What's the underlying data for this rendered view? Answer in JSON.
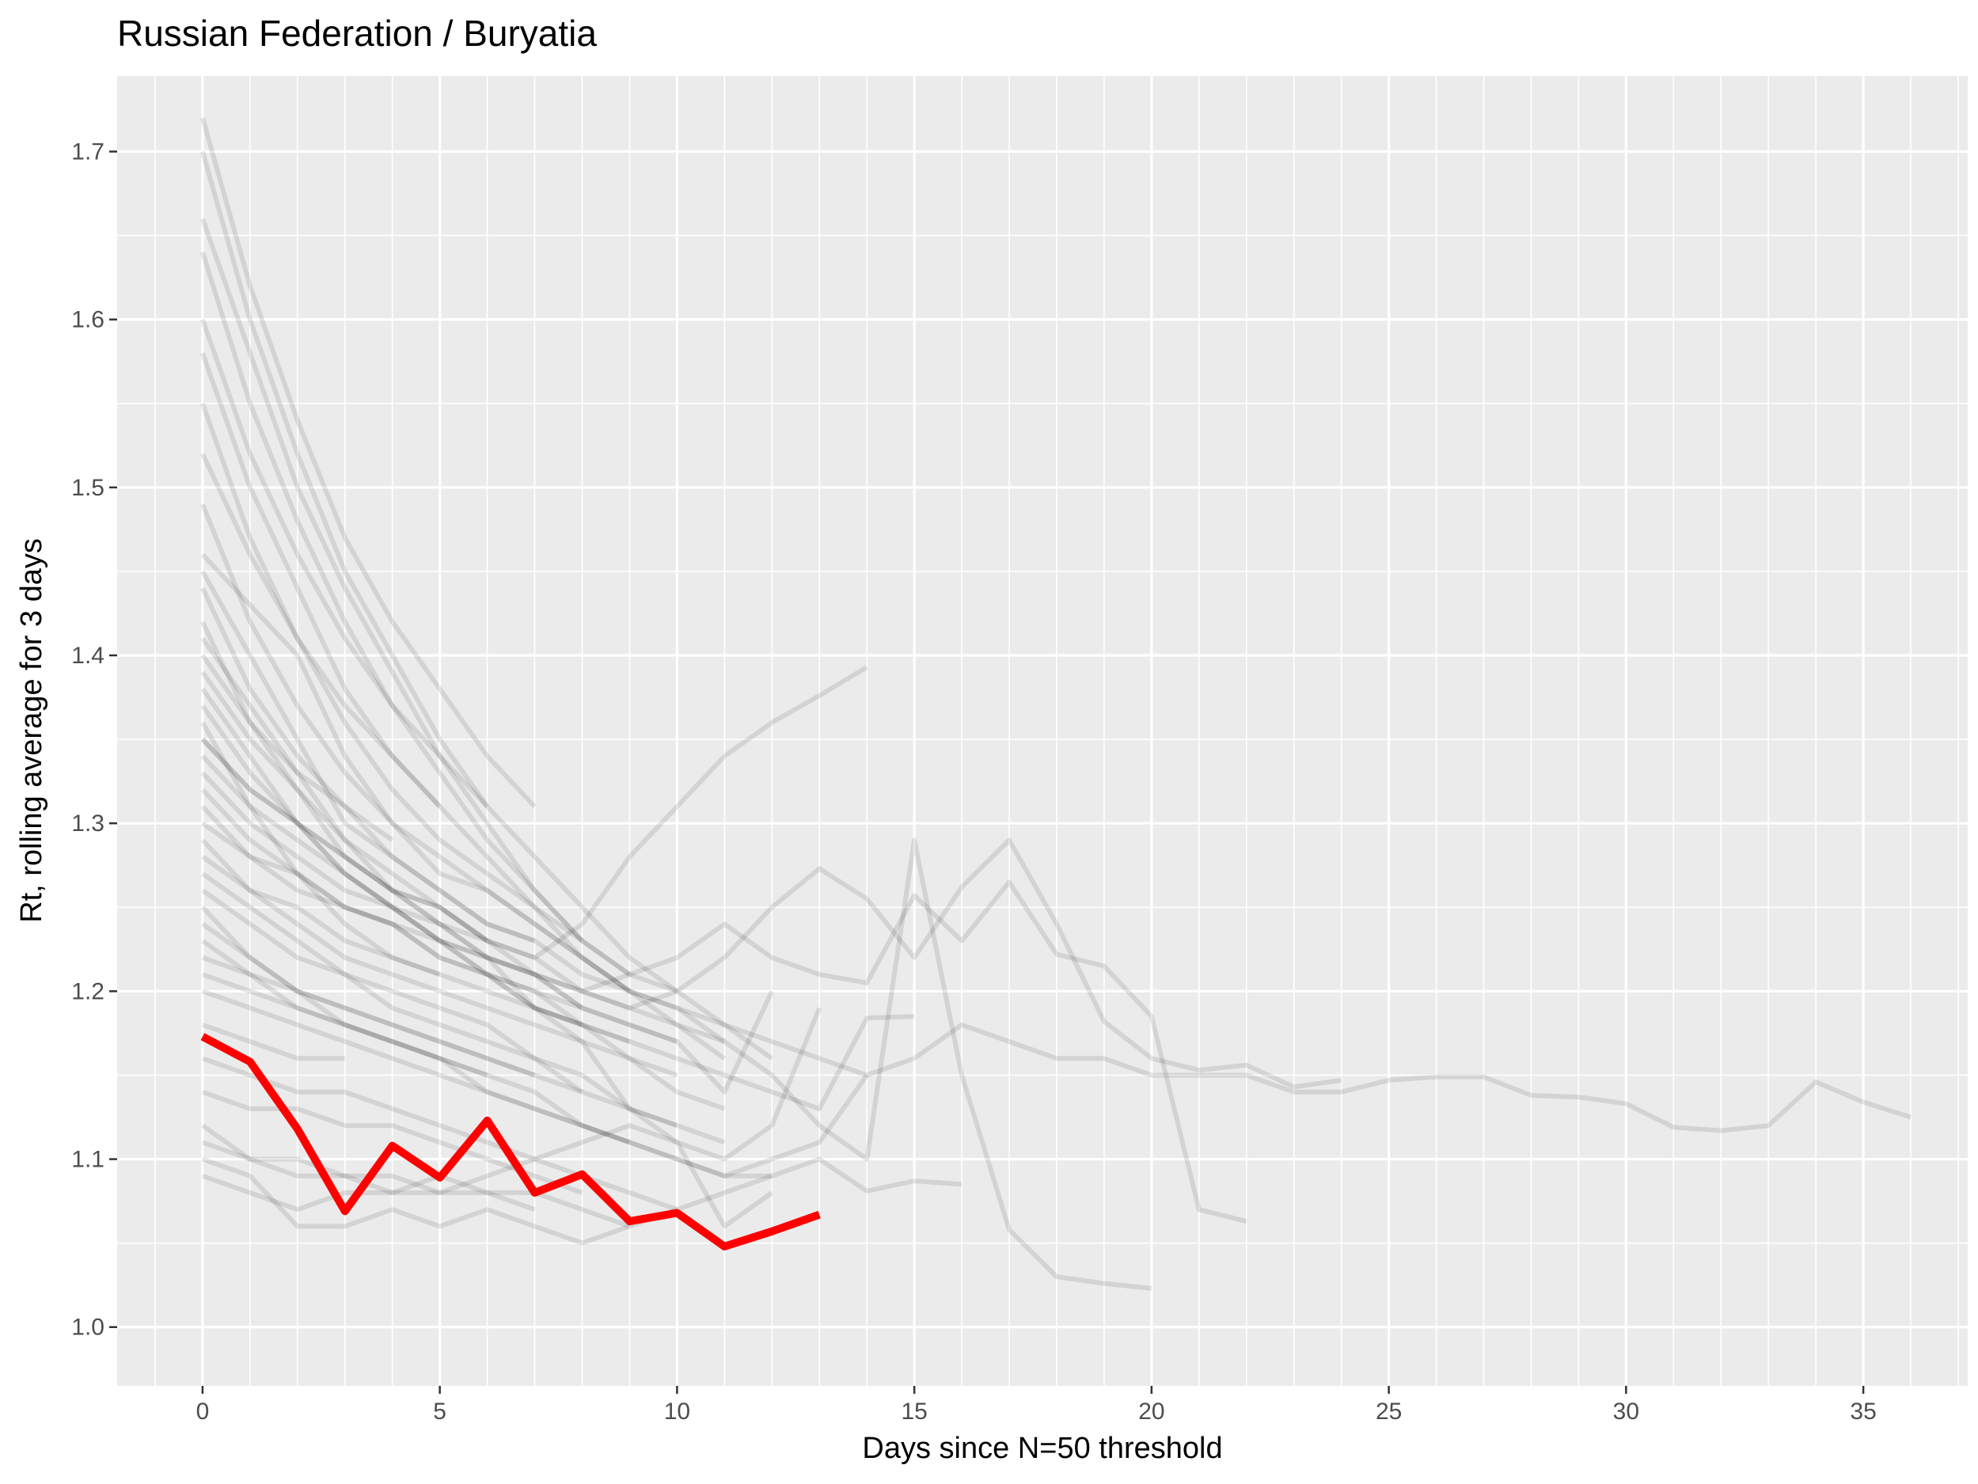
{
  "chart_data": {
    "type": "line",
    "title": "Russian Federation / Buryatia",
    "xlabel": "Days since N=50 threshold",
    "ylabel": "Rt, rolling average for 3 days",
    "xlim": [
      -1.8,
      37.2
    ],
    "ylim": [
      0.965,
      1.745
    ],
    "xticks": [
      0,
      5,
      10,
      15,
      20,
      25,
      30,
      35
    ],
    "yticks": [
      1.0,
      1.1,
      1.2,
      1.3,
      1.4,
      1.5,
      1.6,
      1.7
    ],
    "grid": true,
    "legend": "none",
    "colors": {
      "panel": "#ebebeb",
      "grid": "#ffffff",
      "highlight": "#ff0000",
      "background_series": "#000000"
    },
    "highlight_series": {
      "name": "Buryatia",
      "x": [
        0,
        1,
        2,
        3,
        4,
        5,
        6,
        7,
        8,
        9,
        10,
        11,
        12,
        13
      ],
      "y": [
        1.173,
        1.158,
        1.118,
        1.069,
        1.108,
        1.089,
        1.123,
        1.08,
        1.091,
        1.063,
        1.068,
        1.048,
        1.057,
        1.067
      ]
    },
    "background_series": [
      {
        "x": [
          0,
          1,
          2,
          3,
          4,
          5,
          6,
          7,
          8,
          9,
          10,
          11,
          12,
          13,
          14,
          15,
          16,
          17,
          18,
          19,
          20,
          21,
          22,
          23,
          24,
          25,
          26,
          27,
          28,
          29,
          30,
          31,
          32,
          33,
          34,
          35,
          36
        ],
        "y": [
          1.46,
          1.43,
          1.4,
          1.34,
          1.3,
          1.27,
          1.26,
          1.24,
          1.22,
          1.2,
          1.19,
          1.18,
          1.17,
          1.16,
          1.15,
          1.16,
          1.18,
          1.17,
          1.16,
          1.16,
          1.15,
          1.15,
          1.15,
          1.14,
          1.14,
          1.147,
          1.149,
          1.149,
          1.138,
          1.137,
          1.133,
          1.119,
          1.117,
          1.12,
          1.146,
          1.134,
          1.125
        ]
      },
      {
        "x": [
          0,
          1,
          2,
          3,
          4,
          5,
          6,
          7,
          8,
          9,
          10,
          11,
          12,
          13,
          14,
          15,
          16,
          17,
          18,
          19,
          20,
          21,
          22
        ],
        "y": [
          1.38,
          1.34,
          1.3,
          1.27,
          1.25,
          1.23,
          1.22,
          1.21,
          1.2,
          1.21,
          1.22,
          1.24,
          1.22,
          1.21,
          1.205,
          1.257,
          1.23,
          1.265,
          1.222,
          1.215,
          1.185,
          1.07,
          1.063
        ]
      },
      {
        "x": [
          0,
          1,
          2,
          3,
          4,
          5,
          6,
          7,
          8,
          9,
          10,
          11,
          12,
          13,
          14,
          15,
          16,
          17,
          18,
          19,
          20
        ],
        "y": [
          1.45,
          1.4,
          1.35,
          1.3,
          1.28,
          1.26,
          1.24,
          1.23,
          1.21,
          1.2,
          1.19,
          1.17,
          1.15,
          1.12,
          1.1,
          1.29,
          1.15,
          1.058,
          1.03,
          1.026,
          1.023
        ]
      },
      {
        "x": [
          0,
          1,
          2,
          3,
          4,
          5,
          6,
          7,
          8,
          9,
          10,
          11,
          12,
          13,
          14,
          15,
          16,
          17,
          18,
          19,
          20,
          21,
          22,
          23,
          24
        ],
        "y": [
          1.3,
          1.28,
          1.26,
          1.25,
          1.24,
          1.23,
          1.22,
          1.21,
          1.2,
          1.19,
          1.2,
          1.22,
          1.25,
          1.273,
          1.255,
          1.22,
          1.262,
          1.29,
          1.24,
          1.182,
          1.16,
          1.153,
          1.156,
          1.143,
          1.147
        ]
      },
      {
        "x": [
          0,
          1,
          2,
          3,
          4,
          5,
          6,
          7,
          8,
          9,
          10,
          11,
          12,
          13,
          14,
          15,
          16
        ],
        "y": [
          1.25,
          1.22,
          1.2,
          1.18,
          1.17,
          1.16,
          1.14,
          1.13,
          1.12,
          1.11,
          1.1,
          1.09,
          1.09,
          1.1,
          1.081,
          1.087,
          1.085
        ]
      },
      {
        "x": [
          0,
          1,
          2,
          3,
          4,
          5,
          6,
          7,
          8,
          9,
          10,
          11,
          12,
          13,
          14,
          15
        ],
        "y": [
          1.36,
          1.31,
          1.27,
          1.24,
          1.22,
          1.21,
          1.2,
          1.19,
          1.18,
          1.17,
          1.16,
          1.15,
          1.14,
          1.13,
          1.184,
          1.185
        ]
      },
      {
        "x": [
          0,
          1,
          2,
          3,
          4,
          5,
          6,
          7,
          8,
          9,
          10,
          11,
          12,
          13,
          14
        ],
        "y": [
          1.41,
          1.37,
          1.33,
          1.29,
          1.26,
          1.24,
          1.23,
          1.22,
          1.24,
          1.28,
          1.31,
          1.34,
          1.36,
          1.376,
          1.393
        ]
      },
      {
        "x": [
          0,
          1,
          2,
          3,
          4,
          5,
          6,
          7,
          8,
          9,
          10,
          11,
          12,
          13,
          14
        ],
        "y": [
          1.2,
          1.19,
          1.18,
          1.17,
          1.16,
          1.15,
          1.14,
          1.13,
          1.12,
          1.11,
          1.1,
          1.09,
          1.1,
          1.11,
          1.15
        ]
      },
      {
        "x": [
          0,
          1,
          2,
          3,
          4,
          5,
          6,
          7,
          8,
          9,
          10,
          11,
          12,
          13
        ],
        "y": [
          1.12,
          1.1,
          1.09,
          1.09,
          1.08,
          1.08,
          1.09,
          1.1,
          1.11,
          1.12,
          1.11,
          1.1,
          1.12,
          1.19
        ]
      },
      {
        "x": [
          0,
          1,
          2,
          3,
          4,
          5,
          6,
          7,
          8,
          9,
          10,
          11,
          12
        ],
        "y": [
          1.7,
          1.6,
          1.52,
          1.45,
          1.4,
          1.35,
          1.31,
          1.28,
          1.25,
          1.22,
          1.2,
          1.18,
          1.16
        ]
      },
      {
        "x": [
          0,
          1,
          2,
          3,
          4,
          5,
          6,
          7,
          8,
          9,
          10,
          11,
          12
        ],
        "y": [
          1.35,
          1.32,
          1.3,
          1.28,
          1.26,
          1.24,
          1.22,
          1.19,
          1.17,
          1.13,
          1.11,
          1.06,
          1.08
        ]
      },
      {
        "x": [
          0,
          1,
          2,
          3,
          4,
          5,
          6,
          7,
          8,
          9,
          10,
          11,
          12
        ],
        "y": [
          1.33,
          1.3,
          1.28,
          1.26,
          1.25,
          1.24,
          1.22,
          1.21,
          1.19,
          1.18,
          1.17,
          1.14,
          1.2
        ]
      },
      {
        "x": [
          0,
          1,
          2,
          3,
          4,
          5,
          6,
          7,
          8,
          9,
          10,
          11,
          12
        ],
        "y": [
          1.1,
          1.09,
          1.06,
          1.06,
          1.07,
          1.06,
          1.07,
          1.06,
          1.05,
          1.06,
          1.07,
          1.08,
          1.09
        ]
      },
      {
        "x": [
          0,
          1,
          2,
          3,
          4,
          5,
          6,
          7,
          8,
          9,
          10,
          11
        ],
        "y": [
          1.58,
          1.5,
          1.44,
          1.38,
          1.34,
          1.31,
          1.28,
          1.25,
          1.22,
          1.2,
          1.18,
          1.16
        ]
      },
      {
        "x": [
          0,
          1,
          2,
          3,
          4,
          5,
          6,
          7,
          8,
          9,
          10,
          11
        ],
        "y": [
          1.42,
          1.36,
          1.32,
          1.28,
          1.26,
          1.25,
          1.23,
          1.22,
          1.2,
          1.19,
          1.18,
          1.17
        ]
      },
      {
        "x": [
          0,
          1,
          2,
          3,
          4,
          5,
          6,
          7,
          8,
          9,
          10,
          11
        ],
        "y": [
          1.29,
          1.26,
          1.24,
          1.22,
          1.21,
          1.2,
          1.19,
          1.18,
          1.17,
          1.16,
          1.14,
          1.13
        ]
      },
      {
        "x": [
          0,
          1,
          2,
          3,
          4,
          5,
          6,
          7,
          8,
          9,
          10,
          11
        ],
        "y": [
          1.24,
          1.22,
          1.2,
          1.19,
          1.18,
          1.17,
          1.16,
          1.15,
          1.14,
          1.13,
          1.12,
          1.11
        ]
      },
      {
        "x": [
          0,
          1,
          2,
          3,
          4,
          5,
          6,
          7,
          8,
          9,
          10
        ],
        "y": [
          1.55,
          1.47,
          1.41,
          1.36,
          1.32,
          1.29,
          1.27,
          1.25,
          1.23,
          1.21,
          1.2
        ]
      },
      {
        "x": [
          0,
          1,
          2,
          3,
          4,
          5,
          6,
          7,
          8,
          9,
          10
        ],
        "y": [
          1.37,
          1.33,
          1.3,
          1.27,
          1.25,
          1.23,
          1.21,
          1.19,
          1.18,
          1.16,
          1.15
        ]
      },
      {
        "x": [
          0,
          1,
          2,
          3,
          4,
          5,
          6,
          7,
          8,
          9,
          10
        ],
        "y": [
          1.27,
          1.25,
          1.23,
          1.21,
          1.2,
          1.19,
          1.18,
          1.16,
          1.15,
          1.13,
          1.12
        ]
      },
      {
        "x": [
          0,
          1,
          2,
          3,
          4,
          5,
          6,
          7,
          8,
          9,
          10
        ],
        "y": [
          1.16,
          1.15,
          1.14,
          1.14,
          1.13,
          1.12,
          1.11,
          1.1,
          1.09,
          1.08,
          1.07
        ]
      },
      {
        "x": [
          0,
          1,
          2,
          3,
          4,
          5,
          6,
          7,
          8,
          9,
          10
        ],
        "y": [
          1.31,
          1.28,
          1.27,
          1.25,
          1.24,
          1.22,
          1.21,
          1.2,
          1.19,
          1.18,
          1.17
        ]
      },
      {
        "x": [
          0,
          1,
          2,
          3,
          4,
          5,
          6,
          7,
          8,
          9
        ],
        "y": [
          1.66,
          1.58,
          1.5,
          1.44,
          1.39,
          1.34,
          1.3,
          1.26,
          1.23,
          1.21
        ]
      },
      {
        "x": [
          0,
          1,
          2,
          3,
          4,
          5,
          6,
          7,
          8,
          9
        ],
        "y": [
          1.49,
          1.42,
          1.37,
          1.33,
          1.3,
          1.28,
          1.26,
          1.24,
          1.22,
          1.2
        ]
      },
      {
        "x": [
          0,
          1,
          2,
          3,
          4,
          5,
          6,
          7,
          8,
          9
        ],
        "y": [
          1.22,
          1.21,
          1.19,
          1.18,
          1.17,
          1.16,
          1.15,
          1.14,
          1.12,
          1.11
        ]
      },
      {
        "x": [
          0,
          1,
          2,
          3,
          4,
          5,
          6,
          7,
          8,
          9
        ],
        "y": [
          1.09,
          1.08,
          1.07,
          1.08,
          1.08,
          1.09,
          1.08,
          1.08,
          1.07,
          1.06
        ]
      },
      {
        "x": [
          0,
          1,
          2,
          3,
          4,
          5,
          6,
          7,
          8,
          9
        ],
        "y": [
          1.34,
          1.31,
          1.29,
          1.27,
          1.25,
          1.23,
          1.21,
          1.2,
          1.18,
          1.17
        ]
      },
      {
        "x": [
          0,
          1,
          2,
          3,
          4,
          5,
          6,
          7,
          8
        ],
        "y": [
          1.64,
          1.55,
          1.48,
          1.42,
          1.37,
          1.33,
          1.29,
          1.26,
          1.23
        ]
      },
      {
        "x": [
          0,
          1,
          2,
          3,
          4,
          5,
          6,
          7,
          8
        ],
        "y": [
          1.39,
          1.35,
          1.32,
          1.29,
          1.27,
          1.25,
          1.23,
          1.21,
          1.19
        ]
      },
      {
        "x": [
          0,
          1,
          2,
          3,
          4,
          5,
          6,
          7,
          8
        ],
        "y": [
          1.26,
          1.24,
          1.22,
          1.21,
          1.19,
          1.18,
          1.17,
          1.16,
          1.14
        ]
      },
      {
        "x": [
          0,
          1,
          2,
          3,
          4,
          5,
          6,
          7,
          8
        ],
        "y": [
          1.14,
          1.13,
          1.13,
          1.12,
          1.12,
          1.11,
          1.1,
          1.09,
          1.08
        ]
      },
      {
        "x": [
          0,
          1,
          2,
          3,
          4,
          5,
          6,
          7,
          8
        ],
        "y": [
          1.32,
          1.29,
          1.27,
          1.25,
          1.24,
          1.22,
          1.21,
          1.19,
          1.18
        ]
      },
      {
        "x": [
          0,
          1,
          2,
          3,
          4,
          5,
          6,
          7
        ],
        "y": [
          1.72,
          1.62,
          1.54,
          1.47,
          1.42,
          1.38,
          1.34,
          1.31
        ]
      },
      {
        "x": [
          0,
          1,
          2,
          3,
          4,
          5,
          6,
          7
        ],
        "y": [
          1.44,
          1.38,
          1.34,
          1.31,
          1.28,
          1.26,
          1.24,
          1.23
        ]
      },
      {
        "x": [
          0,
          1,
          2,
          3,
          4,
          5,
          6,
          7
        ],
        "y": [
          1.23,
          1.21,
          1.2,
          1.19,
          1.18,
          1.17,
          1.16,
          1.15
        ]
      },
      {
        "x": [
          0,
          1,
          2,
          3,
          4,
          5,
          6,
          7
        ],
        "y": [
          1.11,
          1.1,
          1.1,
          1.09,
          1.09,
          1.08,
          1.08,
          1.07
        ]
      },
      {
        "x": [
          0,
          1,
          2,
          3,
          4,
          5,
          6
        ],
        "y": [
          1.6,
          1.52,
          1.46,
          1.41,
          1.37,
          1.34,
          1.31
        ]
      },
      {
        "x": [
          0,
          1,
          2,
          3,
          4,
          5,
          6
        ],
        "y": [
          1.35,
          1.32,
          1.3,
          1.28,
          1.26,
          1.25,
          1.23
        ]
      },
      {
        "x": [
          0,
          1,
          2,
          3,
          4,
          5,
          6
        ],
        "y": [
          1.21,
          1.2,
          1.19,
          1.18,
          1.17,
          1.16,
          1.15
        ]
      },
      {
        "x": [
          0,
          1,
          2,
          3,
          4,
          5
        ],
        "y": [
          1.52,
          1.46,
          1.41,
          1.37,
          1.34,
          1.31
        ]
      },
      {
        "x": [
          0,
          1,
          2,
          3,
          4,
          5
        ],
        "y": [
          1.28,
          1.26,
          1.25,
          1.23,
          1.22,
          1.21
        ]
      },
      {
        "x": [
          0,
          1,
          2,
          3,
          4
        ],
        "y": [
          1.4,
          1.36,
          1.33,
          1.31,
          1.29
        ]
      },
      {
        "x": [
          0,
          1,
          2,
          3
        ],
        "y": [
          1.18,
          1.17,
          1.16,
          1.16
        ]
      }
    ]
  }
}
